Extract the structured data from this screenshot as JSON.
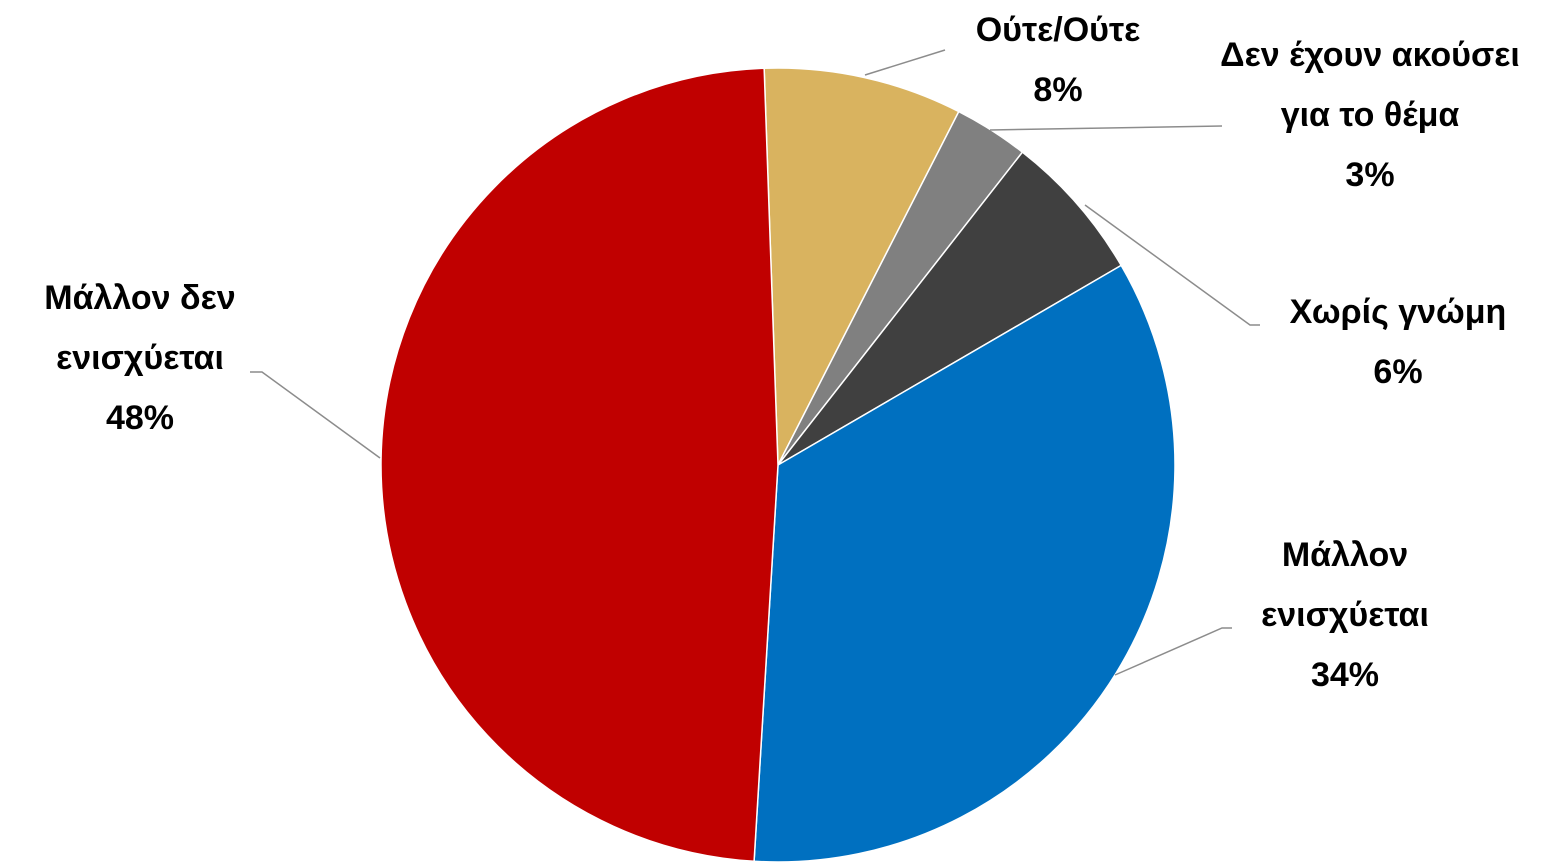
{
  "chart_data": {
    "type": "pie",
    "categories": [
      "Ούτε/Ούτε",
      "Δεν έχουν ακούσει για το θέμα",
      "Χωρίς γνώμη",
      "Μάλλον ενισχύεται",
      "Μάλλον δεν ενισχύεται"
    ],
    "values": [
      8,
      3,
      6,
      34,
      48
    ],
    "value_labels": [
      "8%",
      "3%",
      "6%",
      "34%",
      "48%"
    ],
    "colors": [
      "#d9b35f",
      "#808080",
      "#404040",
      "#0070c0",
      "#c00000"
    ]
  }
}
